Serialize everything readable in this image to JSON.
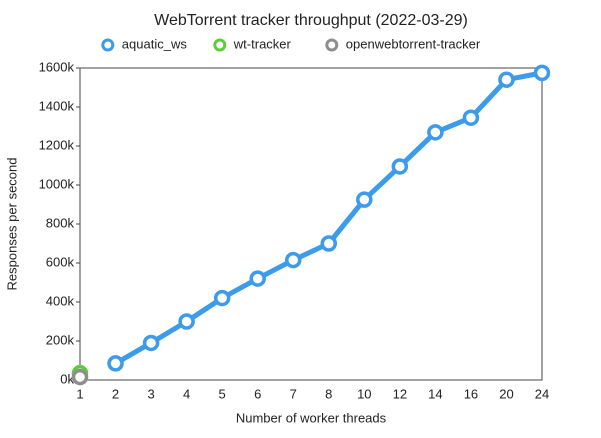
{
  "chart_data": {
    "type": "line",
    "title": "WebTorrent tracker throughput (2022-03-29)",
    "x_label": "Number of worker threads",
    "y_label": "Responses per second",
    "categories": [
      "1",
      "2",
      "3",
      "4",
      "5",
      "6",
      "7",
      "8",
      "10",
      "12",
      "14",
      "16",
      "20",
      "24"
    ],
    "series": [
      {
        "name": "aquatic_ws",
        "color": "#3c9bea",
        "values": [
          null,
          85000,
          190000,
          300000,
          420000,
          520000,
          615000,
          700000,
          925000,
          1095000,
          1270000,
          1345000,
          1540000,
          1575000
        ]
      },
      {
        "name": "wt-tracker",
        "color": "#5ccc37",
        "values": [
          35000,
          null,
          null,
          null,
          null,
          null,
          null,
          null,
          null,
          null,
          null,
          null,
          null,
          null
        ]
      },
      {
        "name": "openwebtorrent-tracker",
        "color": "#8e8e8e",
        "values": [
          15000,
          null,
          null,
          null,
          null,
          null,
          null,
          null,
          null,
          null,
          null,
          null,
          null,
          null
        ]
      }
    ],
    "ylim": [
      0,
      1600000
    ],
    "yticks": [
      {
        "value": 0,
        "label": "0k"
      },
      {
        "value": 200000,
        "label": "200k"
      },
      {
        "value": 400000,
        "label": "400k"
      },
      {
        "value": 600000,
        "label": "600k"
      },
      {
        "value": 800000,
        "label": "800k"
      },
      {
        "value": 1000000,
        "label": "1000k"
      },
      {
        "value": 1200000,
        "label": "1200k"
      },
      {
        "value": 1400000,
        "label": "1400k"
      },
      {
        "value": 1600000,
        "label": "1600k"
      }
    ],
    "grid": false,
    "legend": "top"
  }
}
